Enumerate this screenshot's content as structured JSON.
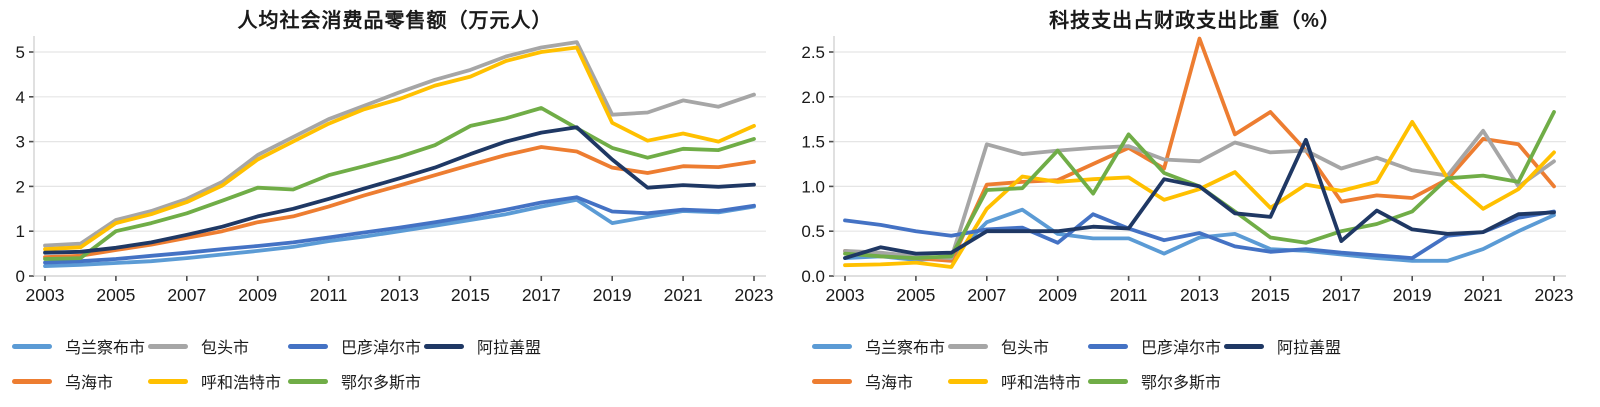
{
  "colors": {
    "乌兰察布市": "#5B9BD5",
    "包头市": "#A6A6A6",
    "巴彦淖尔市": "#4472C4",
    "阿拉善盟": "#1F3864",
    "乌海市": "#ED7D31",
    "呼和浩特市": "#FFC000",
    "鄂尔多斯市": "#70AD47"
  },
  "legend": {
    "rows": [
      [
        "乌兰察布市",
        "包头市",
        "巴彦淖尔市",
        "阿拉善盟"
      ],
      [
        "乌海市",
        "呼和浩特市",
        "鄂尔多斯市"
      ]
    ]
  },
  "chart_data": [
    {
      "type": "line",
      "title": "人均社会消费品零售额（万元人）",
      "xlabel": "",
      "ylabel": "",
      "grid": true,
      "legend_position": "bottom",
      "x": [
        2003,
        2004,
        2005,
        2006,
        2007,
        2008,
        2009,
        2010,
        2011,
        2012,
        2013,
        2014,
        2015,
        2016,
        2017,
        2018,
        2019,
        2020,
        2021,
        2022,
        2023
      ],
      "xticks": [
        2003,
        2005,
        2007,
        2009,
        2011,
        2013,
        2015,
        2017,
        2019,
        2021,
        2023
      ],
      "ylim": [
        0,
        5.5
      ],
      "yticks": [
        0,
        1,
        2,
        3,
        4,
        5
      ],
      "ytick_labels": [
        "0",
        "1",
        "2",
        "3",
        "4",
        "5"
      ],
      "series": [
        {
          "name": "乌兰察布市",
          "values": [
            0.22,
            0.25,
            0.29,
            0.33,
            0.4,
            0.48,
            0.56,
            0.65,
            0.78,
            0.88,
            1.0,
            1.12,
            1.25,
            1.38,
            1.55,
            1.7,
            1.18,
            1.32,
            1.45,
            1.42,
            1.55
          ]
        },
        {
          "name": "乌海市",
          "values": [
            0.42,
            0.45,
            0.58,
            0.7,
            0.85,
            1.0,
            1.2,
            1.33,
            1.55,
            1.8,
            2.02,
            2.25,
            2.48,
            2.7,
            2.88,
            2.78,
            2.42,
            2.3,
            2.45,
            2.43,
            2.55
          ]
        },
        {
          "name": "包头市",
          "values": [
            0.68,
            0.72,
            1.25,
            1.45,
            1.72,
            2.1,
            2.7,
            3.1,
            3.5,
            3.8,
            4.1,
            4.38,
            4.6,
            4.9,
            5.1,
            5.22,
            3.6,
            3.65,
            3.92,
            3.78,
            4.05
          ]
        },
        {
          "name": "呼和浩特市",
          "values": [
            0.6,
            0.64,
            1.18,
            1.38,
            1.65,
            2.02,
            2.6,
            3.0,
            3.4,
            3.72,
            3.95,
            4.25,
            4.45,
            4.8,
            5.0,
            5.1,
            3.42,
            3.02,
            3.18,
            3.0,
            3.35
          ]
        },
        {
          "name": "巴彦淖尔市",
          "values": [
            0.3,
            0.33,
            0.38,
            0.45,
            0.52,
            0.6,
            0.67,
            0.75,
            0.86,
            0.97,
            1.08,
            1.2,
            1.33,
            1.48,
            1.64,
            1.76,
            1.44,
            1.4,
            1.48,
            1.45,
            1.57
          ]
        },
        {
          "name": "鄂尔多斯市",
          "values": [
            0.38,
            0.4,
            1.0,
            1.18,
            1.4,
            1.68,
            1.97,
            1.93,
            2.25,
            2.45,
            2.66,
            2.92,
            3.35,
            3.52,
            3.75,
            3.3,
            2.86,
            2.64,
            2.84,
            2.81,
            3.06
          ]
        },
        {
          "name": "阿拉善盟",
          "values": [
            0.52,
            0.54,
            0.63,
            0.75,
            0.92,
            1.1,
            1.33,
            1.5,
            1.72,
            1.95,
            2.18,
            2.42,
            2.72,
            3.0,
            3.2,
            3.32,
            2.6,
            1.97,
            2.03,
            1.99,
            2.04
          ]
        }
      ]
    },
    {
      "type": "line",
      "title": "科技支出占财政支出比重（%）",
      "xlabel": "",
      "ylabel": "",
      "grid": true,
      "legend_position": "bottom",
      "x": [
        2003,
        2004,
        2005,
        2006,
        2007,
        2008,
        2009,
        2010,
        2011,
        2012,
        2013,
        2014,
        2015,
        2016,
        2017,
        2018,
        2019,
        2020,
        2021,
        2022,
        2023
      ],
      "xticks": [
        2003,
        2005,
        2007,
        2009,
        2011,
        2013,
        2015,
        2017,
        2019,
        2021,
        2023
      ],
      "ylim": [
        0,
        2.75
      ],
      "yticks": [
        0,
        0.5,
        1.0,
        1.5,
        2.0,
        2.5
      ],
      "ytick_labels": [
        "0.0",
        "0.5",
        "1.0",
        "1.5",
        "2.0",
        "2.5"
      ],
      "series": [
        {
          "name": "乌兰察布市",
          "values": [
            0.2,
            0.22,
            0.18,
            0.2,
            0.6,
            0.74,
            0.47,
            0.42,
            0.42,
            0.25,
            0.43,
            0.47,
            0.3,
            0.28,
            0.24,
            0.2,
            0.17,
            0.17,
            0.3,
            0.5,
            0.68
          ]
        },
        {
          "name": "乌海市",
          "values": [
            0.28,
            0.22,
            0.2,
            0.17,
            1.02,
            1.05,
            1.07,
            1.25,
            1.43,
            1.2,
            2.65,
            1.58,
            1.83,
            1.4,
            0.83,
            0.9,
            0.87,
            1.08,
            1.53,
            1.47,
            1.0
          ]
        },
        {
          "name": "包头市",
          "values": [
            0.28,
            0.26,
            0.22,
            0.2,
            1.47,
            1.36,
            1.4,
            1.43,
            1.45,
            1.3,
            1.28,
            1.49,
            1.38,
            1.4,
            1.2,
            1.32,
            1.18,
            1.12,
            1.62,
            1.0,
            1.28
          ]
        },
        {
          "name": "呼和浩特市",
          "values": [
            0.12,
            0.13,
            0.15,
            0.1,
            0.75,
            1.11,
            1.05,
            1.08,
            1.1,
            0.85,
            0.97,
            1.16,
            0.76,
            1.02,
            0.95,
            1.05,
            1.72,
            1.09,
            0.75,
            0.97,
            1.38
          ]
        },
        {
          "name": "巴彦淖尔市",
          "values": [
            0.62,
            0.57,
            0.5,
            0.45,
            0.52,
            0.54,
            0.37,
            0.69,
            0.53,
            0.4,
            0.48,
            0.33,
            0.27,
            0.3,
            0.26,
            0.23,
            0.2,
            0.45,
            0.49,
            0.65,
            0.72
          ]
        },
        {
          "name": "鄂尔多斯市",
          "values": [
            0.25,
            0.22,
            0.2,
            0.22,
            0.96,
            0.98,
            1.4,
            0.92,
            1.58,
            1.15,
            1.0,
            0.72,
            0.43,
            0.37,
            0.5,
            0.58,
            0.72,
            1.09,
            1.12,
            1.05,
            1.83
          ]
        },
        {
          "name": "阿拉善盟",
          "values": [
            0.2,
            0.32,
            0.25,
            0.26,
            0.5,
            0.5,
            0.5,
            0.55,
            0.53,
            1.08,
            1.0,
            0.7,
            0.66,
            1.52,
            0.39,
            0.73,
            0.52,
            0.47,
            0.49,
            0.69,
            0.71
          ]
        }
      ]
    }
  ]
}
